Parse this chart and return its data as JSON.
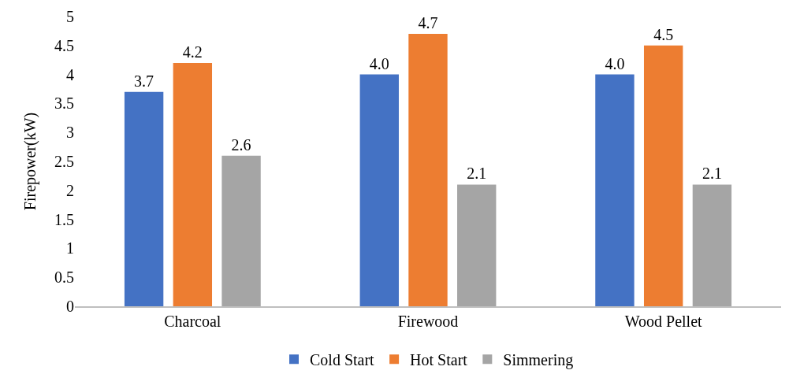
{
  "chart_data": {
    "type": "bar",
    "ylabel": "Firepower(kW)",
    "categories": [
      "Charcoal",
      "Firewood",
      "Wood Pellet"
    ],
    "series": [
      {
        "name": "Cold Start",
        "color": "#4472c4",
        "values": [
          3.7,
          4.0,
          4.0
        ],
        "value_labels": [
          "3.7",
          "4.0",
          "4.0"
        ]
      },
      {
        "name": "Hot Start",
        "color": "#ed7d31",
        "values": [
          4.2,
          4.7,
          4.5
        ],
        "value_labels": [
          "4.2",
          "4.7",
          "4.5"
        ]
      },
      {
        "name": "Simmering",
        "color": "#a5a5a5",
        "values": [
          2.6,
          2.1,
          2.1
        ],
        "value_labels": [
          "2.6",
          "2.1",
          "2.1"
        ]
      }
    ],
    "ylim": [
      0,
      5
    ],
    "yticks": [
      0,
      0.5,
      1,
      1.5,
      2,
      2.5,
      3,
      3.5,
      4,
      4.5,
      5
    ],
    "grid": false,
    "legend": "bottom"
  }
}
